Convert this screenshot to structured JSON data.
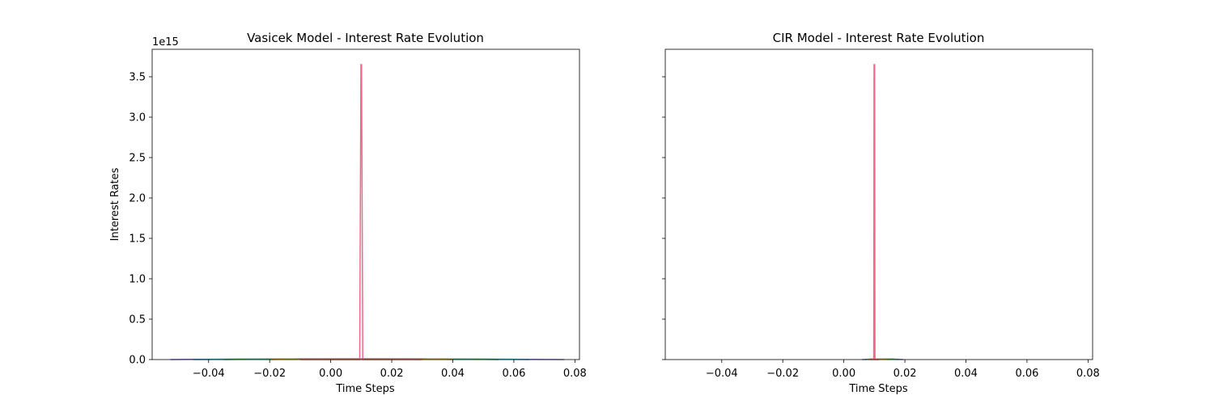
{
  "chart_data": [
    {
      "type": "line",
      "title": "Vasicek Model - Interest Rate Evolution",
      "xlabel": "Time Steps",
      "ylabel": "Interest Rates",
      "y_offset_label": "1e15",
      "xlim": [
        -0.0585,
        0.0815
      ],
      "ylim": [
        0,
        3.84
      ],
      "xticks": [
        -0.04,
        -0.02,
        0.0,
        0.02,
        0.04,
        0.06,
        0.08
      ],
      "xtick_labels": [
        "−0.04",
        "−0.02",
        "0.00",
        "0.02",
        "0.04",
        "0.06",
        "0.08"
      ],
      "yticks": [
        0.0,
        0.5,
        1.0,
        1.5,
        2.0,
        2.5,
        3.0,
        3.5
      ],
      "ytick_labels": [
        "0.0",
        "0.5",
        "1.0",
        "1.5",
        "2.0",
        "2.5",
        "3.0",
        "3.5"
      ],
      "y_scale": "1e15",
      "series": [
        {
          "color": "#8c7bd6",
          "points": [
            [
              -0.0525,
              0.0
            ],
            [
              -0.045,
              0.004
            ],
            [
              0.0,
              0.006
            ],
            [
              0.06,
              0.004
            ],
            [
              0.0765,
              0.0
            ]
          ]
        },
        {
          "color": "#3fa0c8",
          "points": [
            [
              -0.045,
              0.0
            ],
            [
              -0.03,
              0.006
            ],
            [
              0.01,
              0.007
            ],
            [
              0.05,
              0.006
            ],
            [
              0.065,
              0.0
            ]
          ]
        },
        {
          "color": "#41a86a",
          "points": [
            [
              -0.035,
              0.0
            ],
            [
              -0.02,
              0.008
            ],
            [
              0.01,
              0.009
            ],
            [
              0.04,
              0.008
            ],
            [
              0.055,
              0.0
            ]
          ]
        },
        {
          "color": "#b79a2a",
          "points": [
            [
              -0.02,
              0.0
            ],
            [
              -0.01,
              0.01
            ],
            [
              0.01,
              0.011
            ],
            [
              0.03,
              0.01
            ],
            [
              0.04,
              0.0
            ]
          ]
        },
        {
          "color": "#f4678a",
          "points": [
            [
              -0.01,
              0.0
            ],
            [
              0.0095,
              0.0
            ],
            [
              0.0099,
              3.65
            ],
            [
              0.0101,
              3.65
            ],
            [
              0.0105,
              0.0
            ],
            [
              0.03,
              0.0
            ]
          ]
        }
      ]
    },
    {
      "type": "line",
      "title": "CIR Model - Interest Rate Evolution",
      "xlabel": "Time Steps",
      "ylabel": "",
      "xlim": [
        -0.0585,
        0.0815
      ],
      "ylim": [
        0,
        3.84
      ],
      "xticks": [
        -0.04,
        -0.02,
        0.0,
        0.02,
        0.04,
        0.06,
        0.08
      ],
      "xtick_labels": [
        "−0.04",
        "−0.02",
        "0.00",
        "0.02",
        "0.04",
        "0.06",
        "0.08"
      ],
      "yticks": [
        0.0,
        0.5,
        1.0,
        1.5,
        2.0,
        2.5,
        3.0,
        3.5
      ],
      "ytick_labels": [],
      "y_scale": "1e15",
      "sharey": true,
      "series": [
        {
          "color": "#8c7bd6",
          "points": [
            [
              0.006,
              0.0
            ],
            [
              0.008,
              0.004
            ],
            [
              0.018,
              0.004
            ],
            [
              0.0195,
              0.0
            ]
          ]
        },
        {
          "color": "#41a86a",
          "points": [
            [
              0.007,
              0.0
            ],
            [
              0.009,
              0.008
            ],
            [
              0.016,
              0.008
            ],
            [
              0.018,
              0.0
            ]
          ]
        },
        {
          "color": "#b79a2a",
          "points": [
            [
              0.008,
              0.0
            ],
            [
              0.0095,
              0.006
            ],
            [
              0.013,
              0.006
            ],
            [
              0.015,
              0.0
            ]
          ]
        },
        {
          "color": "#f4678a",
          "points": [
            [
              0.0085,
              0.0
            ],
            [
              0.0098,
              0.0
            ],
            [
              0.0099,
              3.65
            ],
            [
              0.0101,
              3.65
            ],
            [
              0.0102,
              0.0
            ],
            [
              0.0115,
              0.0
            ]
          ]
        }
      ]
    }
  ]
}
